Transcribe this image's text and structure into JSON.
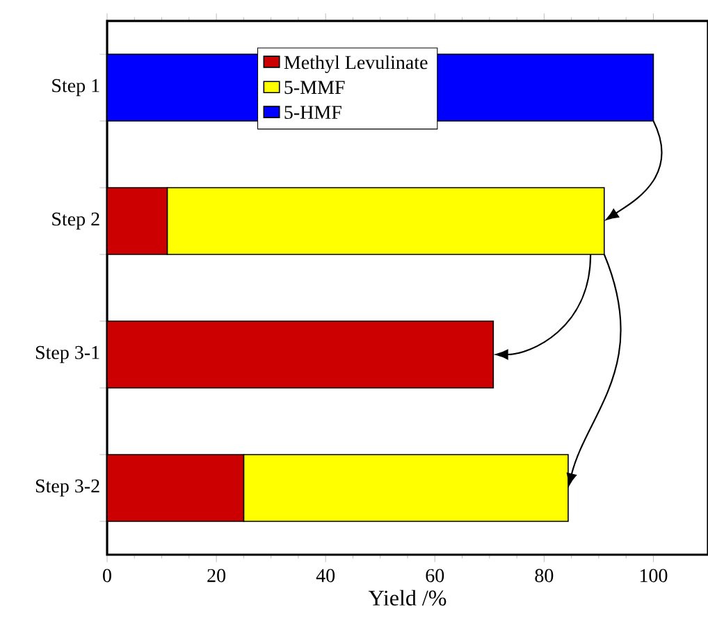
{
  "chart_data": {
    "type": "bar",
    "orientation": "horizontal",
    "stacked": true,
    "xlabel": "Yield /%",
    "categories": [
      "Step 1",
      "Step 2",
      "Step 3-1",
      "Step 3-2"
    ],
    "series": [
      {
        "name": "Methyl Levulinate",
        "color": "#cc0000",
        "values": [
          0,
          11,
          70.7,
          25
        ]
      },
      {
        "name": "5-MMF",
        "color": "#ffff00",
        "values": [
          0,
          80,
          0,
          59.4
        ]
      },
      {
        "name": "5-HMF",
        "color": "#0000ff",
        "values": [
          100,
          0,
          0,
          0
        ]
      }
    ],
    "xlim": [
      0,
      110
    ],
    "xticks": [
      0,
      20,
      40,
      60,
      80,
      100
    ],
    "legend": "top"
  }
}
